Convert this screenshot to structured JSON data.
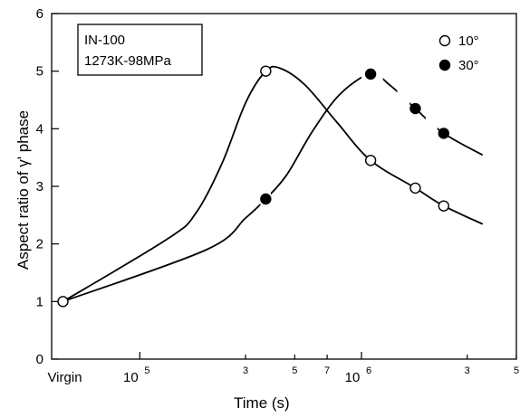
{
  "chart_data": {
    "type": "line",
    "xlabel": "Time (s)",
    "ylabel": "Aspect ratio of γ' phase",
    "x_scale": "log",
    "xlim": [
      40000,
      5000000
    ],
    "ylim": [
      0,
      6
    ],
    "grid": false,
    "legend_position": "top-right",
    "annotation": {
      "line1": "IN-100",
      "line2": "1273K-98MPa"
    },
    "x_tick_labels": [
      {
        "x": 45000,
        "text": "Virgin",
        "kind": "major"
      },
      {
        "x": 100000,
        "text": "10",
        "exp": "5",
        "kind": "major"
      },
      {
        "x": 300000,
        "text": "3",
        "kind": "minor"
      },
      {
        "x": 500000,
        "text": "5",
        "kind": "minor"
      },
      {
        "x": 700000,
        "text": "7",
        "kind": "minor"
      },
      {
        "x": 1000000,
        "text": "10",
        "exp": "6",
        "kind": "major"
      },
      {
        "x": 3000000,
        "text": "3",
        "kind": "minor"
      },
      {
        "x": 5000000,
        "text": "5",
        "kind": "minor"
      }
    ],
    "y_ticks": [
      0,
      1,
      2,
      3,
      4,
      5,
      6
    ],
    "series": [
      {
        "name": "10°",
        "marker": "open-circle",
        "points": [
          {
            "x": 45000,
            "y": 1.0
          },
          {
            "x": 370000,
            "y": 5.0
          },
          {
            "x": 1100000,
            "y": 3.45
          },
          {
            "x": 1750000,
            "y": 2.97
          },
          {
            "x": 2350000,
            "y": 2.66
          }
        ],
        "curve": [
          {
            "x": 45000,
            "y": 1.0
          },
          {
            "x": 135000,
            "y": 2.1
          },
          {
            "x": 180000,
            "y": 2.55
          },
          {
            "x": 235000,
            "y": 3.4
          },
          {
            "x": 300000,
            "y": 4.45
          },
          {
            "x": 370000,
            "y": 5.0
          },
          {
            "x": 430000,
            "y": 5.05
          },
          {
            "x": 560000,
            "y": 4.75
          },
          {
            "x": 780000,
            "y": 4.1
          },
          {
            "x": 1100000,
            "y": 3.45
          },
          {
            "x": 1750000,
            "y": 2.97
          },
          {
            "x": 2350000,
            "y": 2.66
          },
          {
            "x": 3500000,
            "y": 2.35
          }
        ],
        "gaps": []
      },
      {
        "name": "30°",
        "marker": "filled-circle",
        "points": [
          {
            "x": 370000,
            "y": 2.78
          },
          {
            "x": 1100000,
            "y": 4.95
          },
          {
            "x": 1750000,
            "y": 4.35
          },
          {
            "x": 2350000,
            "y": 3.92
          }
        ],
        "curve": [
          {
            "x": 45000,
            "y": 1.0
          },
          {
            "x": 200000,
            "y": 1.9
          },
          {
            "x": 300000,
            "y": 2.45
          },
          {
            "x": 370000,
            "y": 2.78
          },
          {
            "x": 460000,
            "y": 3.2
          },
          {
            "x": 600000,
            "y": 3.95
          },
          {
            "x": 800000,
            "y": 4.6
          },
          {
            "x": 1100000,
            "y": 4.95
          },
          {
            "x": 1350000,
            "y": 4.75
          },
          {
            "x": 1750000,
            "y": 4.35
          },
          {
            "x": 2350000,
            "y": 3.92
          },
          {
            "x": 3500000,
            "y": 3.55
          }
        ],
        "gaps": [
          [
            350000,
            390000
          ],
          [
            1000000,
            1250000
          ],
          [
            1450000,
            1650000
          ],
          [
            1950000,
            2200000
          ]
        ]
      }
    ]
  }
}
